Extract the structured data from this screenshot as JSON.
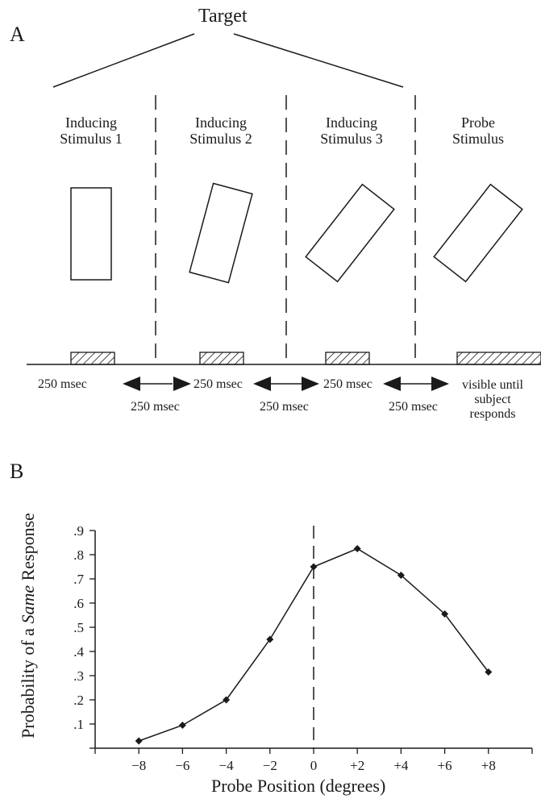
{
  "panel_a": {
    "letter": "A",
    "target_label": "Target",
    "stimuli": [
      {
        "line1": "Inducing",
        "line2": "Stimulus 1"
      },
      {
        "line1": "Inducing",
        "line2": "Stimulus 2"
      },
      {
        "line1": "Inducing",
        "line2": "Stimulus 3"
      },
      {
        "line1": "Probe",
        "line2": "Stimulus"
      }
    ],
    "durations": [
      "250 msec",
      "250 msec",
      "250 msec"
    ],
    "intervals": [
      "250 msec",
      "250 msec",
      "250 msec"
    ],
    "probe_duration": {
      "line1": "visible until",
      "line2": "subject",
      "line3": "responds"
    }
  },
  "panel_b": {
    "letter": "B"
  },
  "chart_data": {
    "type": "line",
    "xlabel": "Probe Position (degrees)",
    "ylabel_parts": [
      "Probability of a ",
      "Same",
      " Response"
    ],
    "x": [
      -8,
      -6,
      -4,
      -2,
      0,
      2,
      4,
      6,
      8
    ],
    "x_tick_labels": [
      "−8",
      "−6",
      "−4",
      "−2",
      "0",
      "+2",
      "+4",
      "+6",
      "+8"
    ],
    "y": [
      0.03,
      0.095,
      0.2,
      0.45,
      0.75,
      0.825,
      0.715,
      0.555,
      0.315
    ],
    "y_ticks": [
      0.1,
      0.2,
      0.3,
      0.4,
      0.5,
      0.6,
      0.7,
      0.8,
      0.9
    ],
    "y_tick_labels": [
      ".1",
      ".2",
      ".3",
      ".4",
      ".5",
      ".6",
      ".7",
      ".8",
      ".9"
    ],
    "xlim": [
      -10,
      10
    ],
    "ylim": [
      0,
      0.9
    ],
    "reference_line_x": 0,
    "grid": false,
    "line_color": "#1a1a1a"
  }
}
